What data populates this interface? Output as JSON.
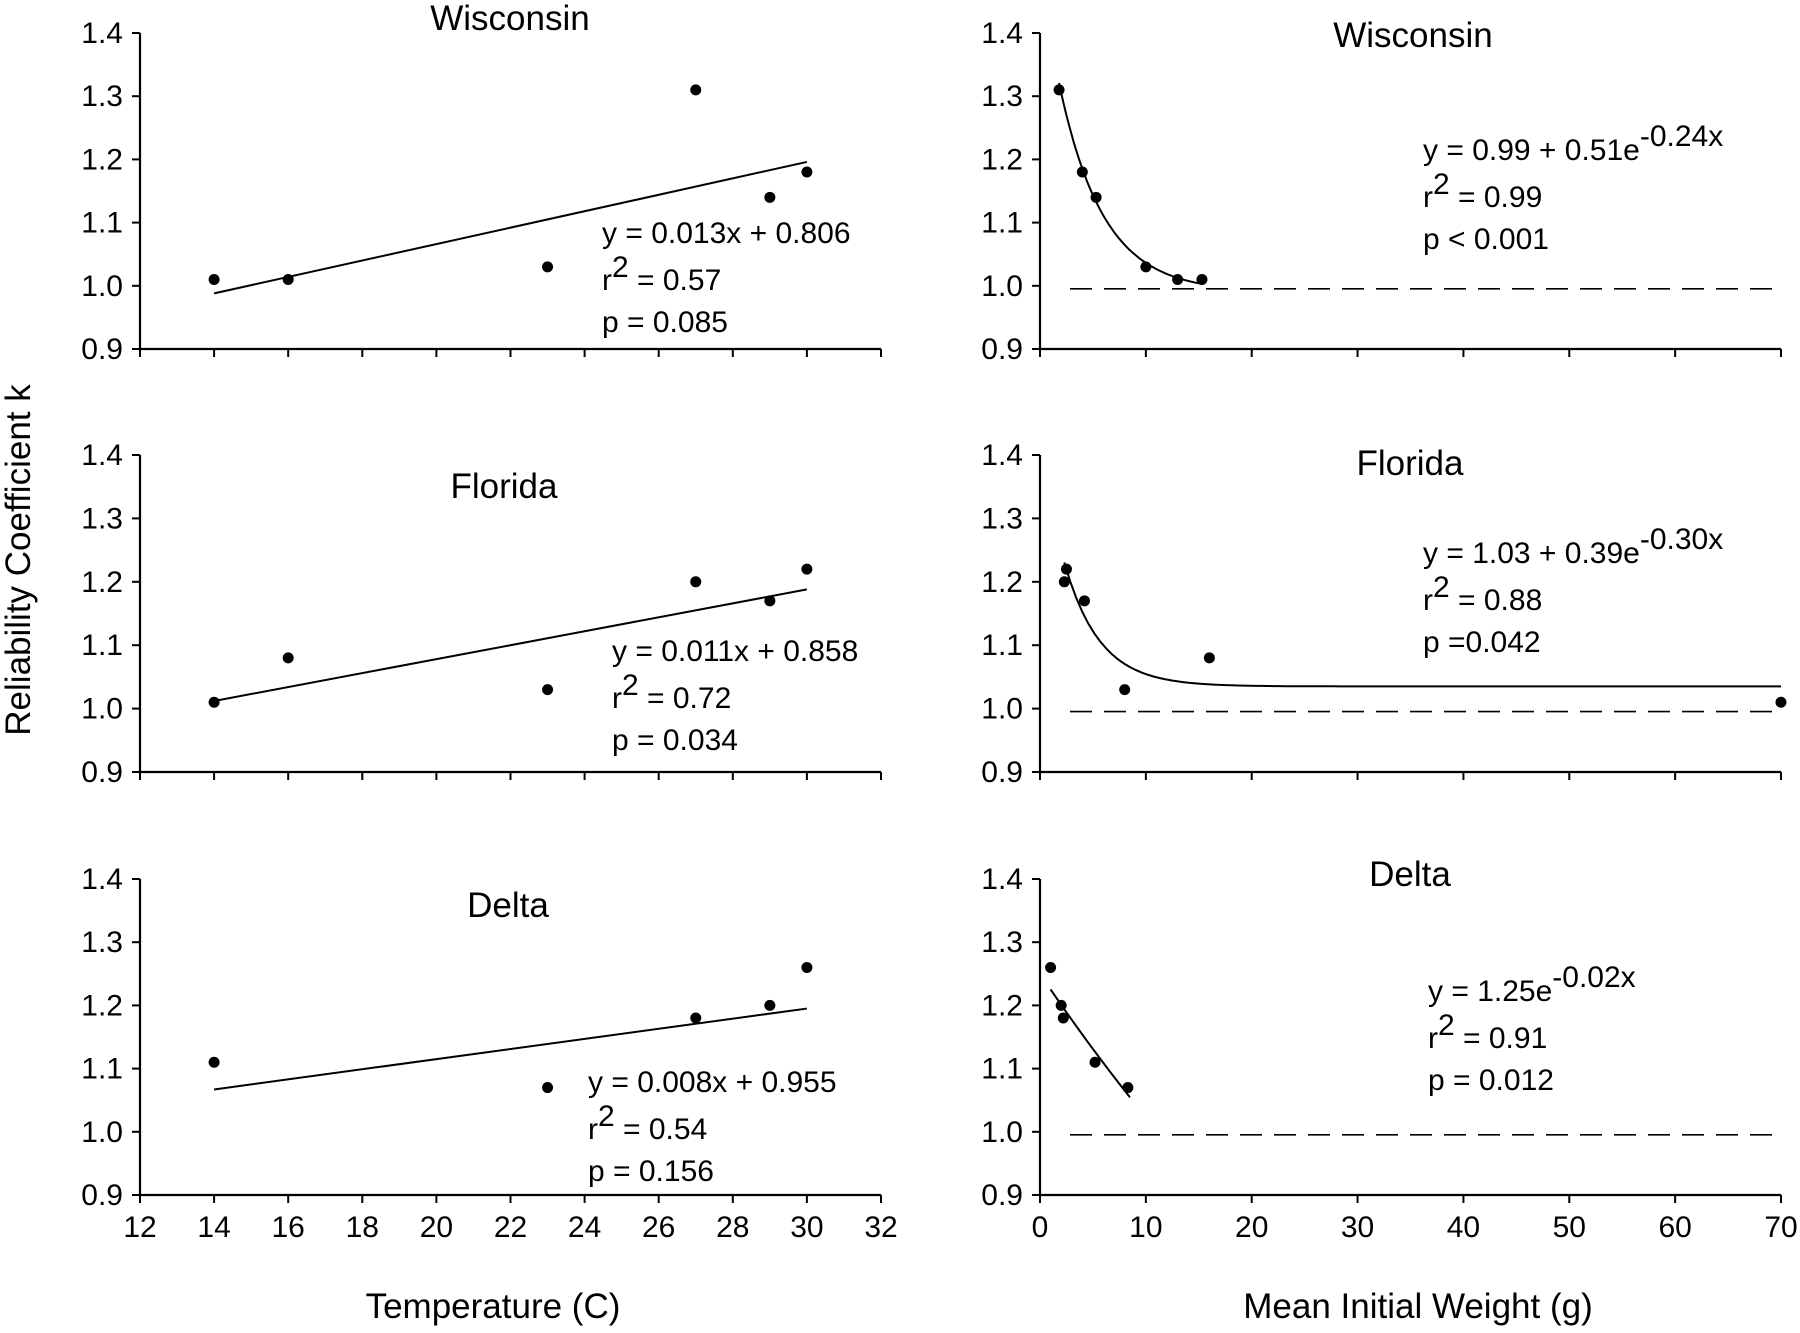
{
  "figure": {
    "ylabel": "Reliability Coefficient k",
    "xlabel_left": "Temperature (C)",
    "xlabel_right": "Mean Initial Weight (g)"
  },
  "chart_data": [
    {
      "type": "scatter",
      "title": "Wisconsin",
      "xlabel": "Temperature (C)",
      "ylabel": "Reliability Coefficient k",
      "xlim": [
        12,
        32
      ],
      "ylim": [
        0.9,
        1.4
      ],
      "xticks": [
        "12",
        "14",
        "16",
        "18",
        "20",
        "22",
        "24",
        "26",
        "28",
        "30",
        "32"
      ],
      "yticks": [
        "0.9",
        "1.0",
        "1.1",
        "1.2",
        "1.3",
        "1.4"
      ],
      "x_tick_labels_shown": false,
      "points": {
        "x": [
          14,
          16,
          23,
          27,
          29,
          30
        ],
        "y": [
          1.01,
          1.01,
          1.03,
          1.31,
          1.14,
          1.18
        ]
      },
      "fit": {
        "kind": "linear",
        "a": 0.806,
        "b": 0.013,
        "x_range": [
          14,
          30
        ]
      },
      "equation": {
        "base": "y = 0.013x + 0.806",
        "sup": ""
      },
      "r2_value": "= 0.57",
      "p_text": "p = 0.085",
      "reference_line": null
    },
    {
      "type": "scatter",
      "title": "Wisconsin",
      "xlabel": "Mean Initial Weight (g)",
      "ylabel": "Reliability Coefficient k",
      "xlim": [
        0,
        70
      ],
      "ylim": [
        0.9,
        1.4
      ],
      "xticks": [
        "0",
        "10",
        "20",
        "30",
        "40",
        "50",
        "60",
        "70"
      ],
      "yticks": [
        "0.9",
        "1.0",
        "1.1",
        "1.2",
        "1.3",
        "1.4"
      ],
      "x_tick_labels_shown": false,
      "points": {
        "x": [
          1.8,
          4,
          5.3,
          10,
          13,
          15.3
        ],
        "y": [
          1.31,
          1.18,
          1.14,
          1.03,
          1.01,
          1.01
        ]
      },
      "fit": {
        "kind": "exponential",
        "a": 0.99,
        "b": 0.51,
        "c": -0.24,
        "x_range": [
          1.8,
          15.3
        ]
      },
      "equation": {
        "base": "y = 0.99 + 0.51e",
        "sup": "-0.24x"
      },
      "r2_value": "= 0.99",
      "p_text": "p < 0.001",
      "reference_line": 1.0
    },
    {
      "type": "scatter",
      "title": "Florida",
      "xlabel": "Temperature (C)",
      "ylabel": "Reliability Coefficient k",
      "xlim": [
        12,
        32
      ],
      "ylim": [
        0.9,
        1.4
      ],
      "xticks": [
        "12",
        "14",
        "16",
        "18",
        "20",
        "22",
        "24",
        "26",
        "28",
        "30",
        "32"
      ],
      "yticks": [
        "0.9",
        "1.0",
        "1.1",
        "1.2",
        "1.3",
        "1.4"
      ],
      "x_tick_labels_shown": false,
      "points": {
        "x": [
          14,
          16,
          23,
          27,
          29,
          30
        ],
        "y": [
          1.01,
          1.08,
          1.03,
          1.2,
          1.17,
          1.22
        ]
      },
      "fit": {
        "kind": "linear",
        "a": 0.858,
        "b": 0.011,
        "x_range": [
          14,
          30
        ]
      },
      "equation": {
        "base": "y = 0.011x + 0.858",
        "sup": ""
      },
      "r2_value": "= 0.72",
      "p_text": "p = 0.034",
      "reference_line": null
    },
    {
      "type": "scatter",
      "title": "Florida",
      "xlabel": "Mean Initial Weight (g)",
      "ylabel": "Reliability Coefficient k",
      "xlim": [
        0,
        70
      ],
      "ylim": [
        0.9,
        1.4
      ],
      "xticks": [
        "0",
        "10",
        "20",
        "30",
        "40",
        "50",
        "60",
        "70"
      ],
      "yticks": [
        "0.9",
        "1.0",
        "1.1",
        "1.2",
        "1.3",
        "1.4"
      ],
      "x_tick_labels_shown": false,
      "points": {
        "x": [
          2.3,
          2.5,
          4.2,
          8,
          16,
          70
        ],
        "y": [
          1.2,
          1.22,
          1.17,
          1.03,
          1.08,
          1.01
        ]
      },
      "fit": {
        "kind": "exponential",
        "a": 1.035,
        "b": 0.39,
        "c": -0.3,
        "x_range": [
          2.3,
          70
        ]
      },
      "equation": {
        "base": "y = 1.03 + 0.39e",
        "sup": "-0.30x"
      },
      "r2_value": "= 0.88",
      "p_text": "p =0.042",
      "reference_line": 1.0
    },
    {
      "type": "scatter",
      "title": "Delta",
      "xlabel": "Temperature (C)",
      "ylabel": "Reliability Coefficient k",
      "xlim": [
        12,
        32
      ],
      "ylim": [
        0.9,
        1.4
      ],
      "xticks": [
        "12",
        "14",
        "16",
        "18",
        "20",
        "22",
        "24",
        "26",
        "28",
        "30",
        "32"
      ],
      "yticks": [
        "0.9",
        "1.0",
        "1.1",
        "1.2",
        "1.3",
        "1.4"
      ],
      "x_tick_labels_shown": true,
      "points": {
        "x": [
          14,
          23,
          27,
          29,
          30
        ],
        "y": [
          1.11,
          1.07,
          1.18,
          1.2,
          1.26
        ]
      },
      "fit": {
        "kind": "linear",
        "a": 0.955,
        "b": 0.008,
        "x_range": [
          14,
          30
        ]
      },
      "equation": {
        "base": "y = 0.008x + 0.955",
        "sup": ""
      },
      "r2_value": "= 0.54",
      "p_text": "p = 0.156",
      "reference_line": null
    },
    {
      "type": "scatter",
      "title": "Delta",
      "xlabel": "Mean Initial Weight (g)",
      "ylabel": "Reliability Coefficient k",
      "xlim": [
        0,
        70
      ],
      "ylim": [
        0.9,
        1.4
      ],
      "xticks": [
        "0",
        "10",
        "20",
        "30",
        "40",
        "50",
        "60",
        "70"
      ],
      "yticks": [
        "0.9",
        "1.0",
        "1.1",
        "1.2",
        "1.3",
        "1.4"
      ],
      "x_tick_labels_shown": true,
      "points": {
        "x": [
          1,
          2,
          2.2,
          5.2,
          8.3
        ],
        "y": [
          1.26,
          1.2,
          1.18,
          1.11,
          1.07
        ]
      },
      "fit": {
        "kind": "exponential",
        "a": 0,
        "b": 1.25,
        "c": -0.02,
        "x_range": [
          1,
          8.5
        ]
      },
      "equation": {
        "base": "y = 1.25e",
        "sup": "-0.02x"
      },
      "r2_value": "= 0.91",
      "p_text": "p = 0.012",
      "reference_line": 1.0
    }
  ]
}
